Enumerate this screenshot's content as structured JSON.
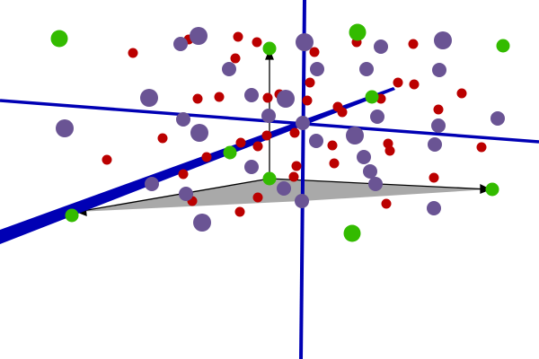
{
  "scene": {
    "background": "#ffffff",
    "colors": {
      "axis": "#0000b4",
      "plane_fill": "#a9a9a9",
      "arrow": "#000000",
      "point_red": "#bb0000",
      "point_purple": "#6a5494",
      "point_green": "#33bb00"
    },
    "legend": null
  }
}
